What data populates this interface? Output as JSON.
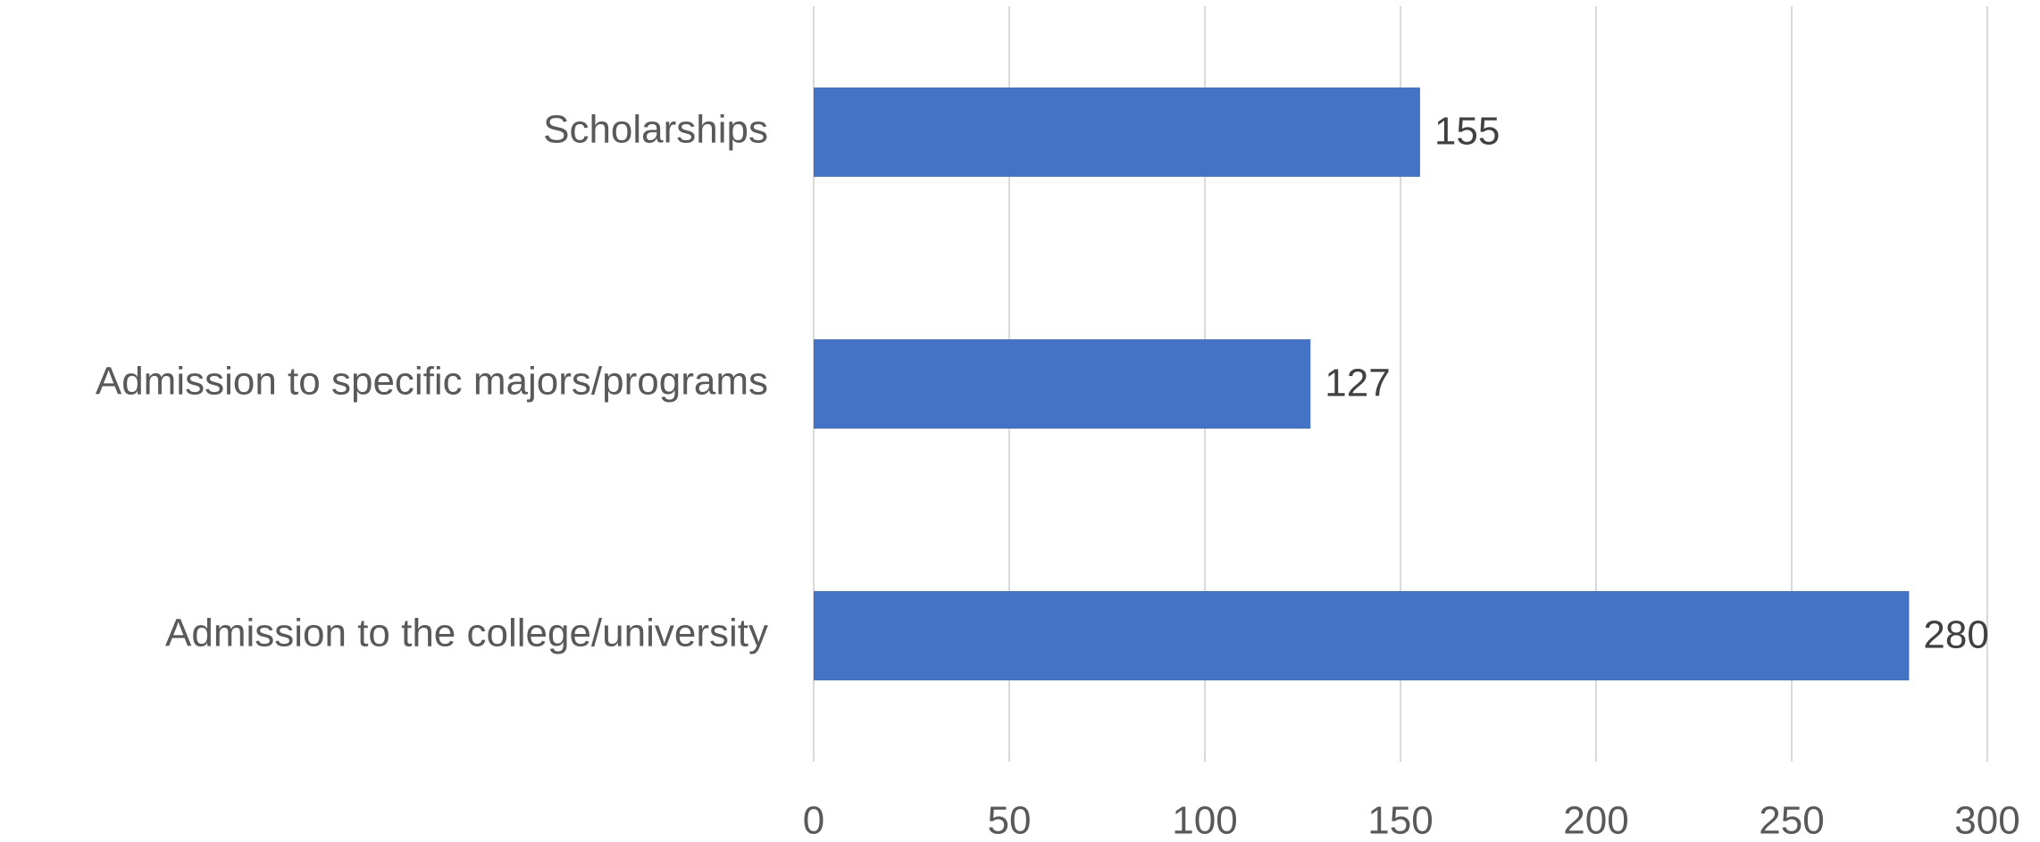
{
  "chart_data": {
    "type": "barh",
    "categories": [
      "Scholarships",
      "Admission to specific majors/programs",
      "Admission to the college/university"
    ],
    "values": [
      155,
      127,
      280
    ],
    "color": "#4472c4",
    "xlim": [
      0,
      300
    ],
    "xticks": [
      0,
      50,
      100,
      150,
      200,
      250,
      300
    ],
    "grid": true
  }
}
